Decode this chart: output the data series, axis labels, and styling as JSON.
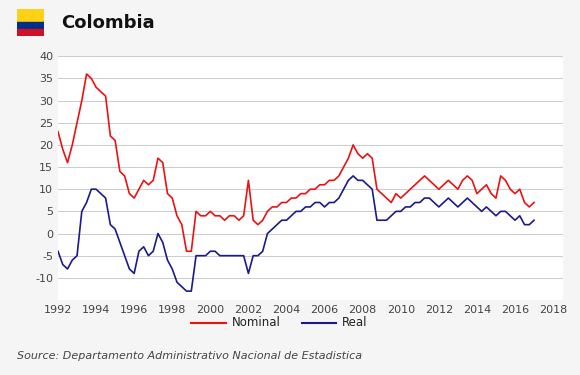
{
  "title": "Colombia",
  "source_text": "Source: Departamento Administrativo Nacional de Estadistica",
  "nominal_color": "#ee1111",
  "real_color": "#1a1a8c",
  "background_color": "#f5f5f5",
  "plot_bg_color": "#ffffff",
  "header_bg_color": "#e8e8e8",
  "ylim": [
    -15,
    40
  ],
  "xticks": [
    1992,
    1994,
    1996,
    1998,
    2000,
    2002,
    2004,
    2006,
    2008,
    2010,
    2012,
    2014,
    2016,
    2018
  ],
  "nominal_y": [
    23,
    19,
    16,
    20,
    25,
    30,
    36,
    35,
    33,
    32,
    31,
    22,
    21,
    14,
    13,
    9,
    8,
    10,
    12,
    11,
    12,
    17,
    16,
    9,
    8,
    4,
    2,
    -4,
    -4,
    5,
    4,
    4,
    5,
    4,
    4,
    3,
    4,
    4,
    3,
    4,
    12,
    3,
    2,
    3,
    5,
    6,
    6,
    7,
    7,
    8,
    8,
    9,
    9,
    10,
    10,
    11,
    11,
    12,
    12,
    13,
    15,
    17,
    20,
    18,
    17,
    18,
    17,
    10,
    9,
    8,
    7,
    9,
    8,
    9,
    10,
    11,
    12,
    13,
    12,
    11,
    10,
    11,
    12,
    11,
    10,
    12,
    13,
    12,
    9,
    10,
    11,
    9,
    8,
    13,
    12,
    10,
    9,
    10,
    7,
    6,
    7
  ],
  "real_y": [
    -4,
    -7,
    -8,
    -6,
    -5,
    5,
    7,
    10,
    10,
    9,
    8,
    2,
    1,
    -2,
    -5,
    -8,
    -9,
    -4,
    -3,
    -5,
    -4,
    0,
    -2,
    -6,
    -8,
    -11,
    -12,
    -13,
    -13,
    -5,
    -5,
    -5,
    -4,
    -4,
    -5,
    -5,
    -5,
    -5,
    -5,
    -5,
    -9,
    -5,
    -5,
    -4,
    0,
    1,
    2,
    3,
    3,
    4,
    5,
    5,
    6,
    6,
    7,
    7,
    6,
    7,
    7,
    8,
    10,
    12,
    13,
    12,
    12,
    11,
    10,
    3,
    3,
    3,
    4,
    5,
    5,
    6,
    6,
    7,
    7,
    8,
    8,
    7,
    6,
    7,
    8,
    7,
    6,
    7,
    8,
    7,
    6,
    5,
    6,
    5,
    4,
    5,
    5,
    4,
    3,
    4,
    2,
    2,
    3
  ],
  "flag_colors": {
    "yellow": "#FCD116",
    "blue": "#003087",
    "red": "#CE1126"
  }
}
